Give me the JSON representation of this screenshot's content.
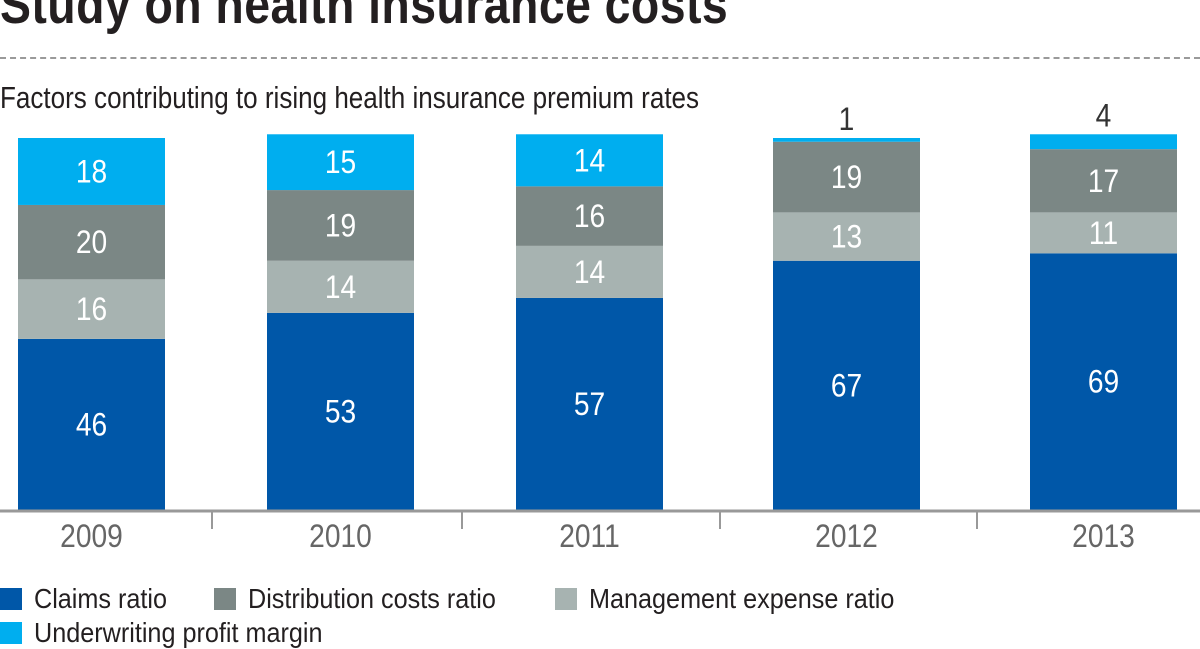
{
  "title": "Study on health insurance costs",
  "chart_data": {
    "type": "bar",
    "stacked": true,
    "title": "Study on health insurance costs",
    "subtitle": "Factors contributing to rising health insurance premium rates",
    "categories": [
      "2009",
      "2010",
      "2011",
      "2012",
      "2013"
    ],
    "series": [
      {
        "name": "Claims ratio",
        "color": "#0057a8",
        "values": [
          46,
          53,
          57,
          67,
          69
        ]
      },
      {
        "name": "Management expense ratio",
        "color": "#a7b3b1",
        "values": [
          16,
          14,
          14,
          13,
          11
        ]
      },
      {
        "name": "Distribution costs ratio",
        "color": "#7b8785",
        "values": [
          20,
          19,
          16,
          19,
          17
        ]
      },
      {
        "name": "Underwriting profit margin",
        "color": "#00aeef",
        "values": [
          18,
          15,
          14,
          1,
          4
        ]
      }
    ],
    "legend_order": [
      "Claims ratio",
      "Distribution costs ratio",
      "Management expense ratio",
      "Underwriting profit margin"
    ],
    "legend_placement": "bottom",
    "ylim": [
      0,
      100
    ],
    "grid": false,
    "data_labels": true
  }
}
